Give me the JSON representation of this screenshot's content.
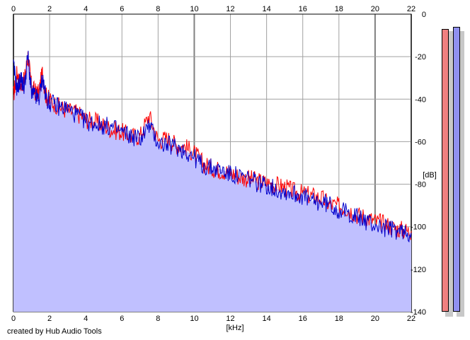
{
  "credit": "created by Hub Audio Tools",
  "colors": {
    "fill": "#c0c0ff",
    "channel_left": "#ff0000",
    "channel_right": "#0000cc",
    "grid": "#a0a0a0",
    "meter_left": "#f08080",
    "meter_right": "#9090f0"
  },
  "chart_data": {
    "type": "area",
    "xlabel": "[kHz]",
    "ylabel": "[dB]",
    "xlim": [
      0,
      22
    ],
    "ylim": [
      -140,
      0
    ],
    "x_ticks": [
      "0",
      "2",
      "4",
      "6",
      "8",
      "10",
      "12",
      "14",
      "16",
      "18",
      "20",
      "22"
    ],
    "y_ticks": [
      "0",
      "-20",
      "-40",
      "-60",
      "-80",
      "-100",
      "-120",
      "-140"
    ],
    "grid": true,
    "series": [
      {
        "color": "#ff0000",
        "x": [
          0.0,
          0.2,
          0.4,
          0.6,
          0.8,
          1.0,
          1.2,
          1.4,
          1.6,
          1.8,
          2.0,
          2.5,
          3.0,
          3.5,
          4.0,
          4.5,
          5.0,
          5.5,
          6.0,
          6.5,
          7.0,
          7.5,
          8.0,
          8.5,
          9.0,
          9.5,
          10.0,
          10.5,
          11.0,
          11.5,
          12.0,
          12.5,
          13.0,
          13.5,
          14.0,
          14.5,
          15.0,
          15.5,
          16.0,
          16.5,
          17.0,
          17.5,
          18.0,
          18.5,
          19.0,
          19.5,
          20.0,
          20.5,
          21.0,
          21.5,
          22.0
        ],
        "values": [
          -38,
          -27,
          -33,
          -31,
          -19,
          -34,
          -36,
          -37,
          -27,
          -38,
          -40,
          -43,
          -45,
          -46,
          -49,
          -50,
          -52,
          -54,
          -55,
          -57,
          -57,
          -47,
          -59,
          -58,
          -61,
          -62,
          -65,
          -70,
          -72,
          -73,
          -74,
          -76,
          -77,
          -78,
          -79,
          -80,
          -81,
          -83,
          -84,
          -85,
          -86,
          -89,
          -90,
          -91,
          -94,
          -95,
          -97,
          -98,
          -100,
          -101,
          -102
        ]
      },
      {
        "color": "#0000cc",
        "x": [
          0.0,
          0.2,
          0.4,
          0.6,
          0.8,
          1.0,
          1.2,
          1.4,
          1.6,
          1.8,
          2.0,
          2.5,
          3.0,
          3.5,
          4.0,
          4.5,
          5.0,
          5.5,
          6.0,
          6.5,
          7.0,
          7.5,
          8.0,
          8.5,
          9.0,
          9.5,
          10.0,
          10.5,
          11.0,
          11.5,
          12.0,
          12.5,
          13.0,
          13.5,
          14.0,
          14.5,
          15.0,
          15.5,
          16.0,
          16.5,
          17.0,
          17.5,
          18.0,
          18.5,
          19.0,
          19.5,
          20.0,
          20.5,
          21.0,
          21.5,
          22.0
        ],
        "values": [
          -24,
          -35,
          -30,
          -34,
          -19,
          -37,
          -38,
          -40,
          -29,
          -39,
          -41,
          -43,
          -44,
          -47,
          -50,
          -51,
          -52,
          -53,
          -55,
          -57,
          -58,
          -52,
          -60,
          -61,
          -62,
          -64,
          -67,
          -71,
          -72,
          -73,
          -75,
          -76,
          -77,
          -79,
          -80,
          -82,
          -83,
          -84,
          -85,
          -88,
          -88,
          -89,
          -92,
          -93,
          -95,
          -97,
          -99,
          -100,
          -101,
          -102,
          -103
        ]
      }
    ],
    "meters": {
      "left_db": -7,
      "right_db": -6
    }
  }
}
